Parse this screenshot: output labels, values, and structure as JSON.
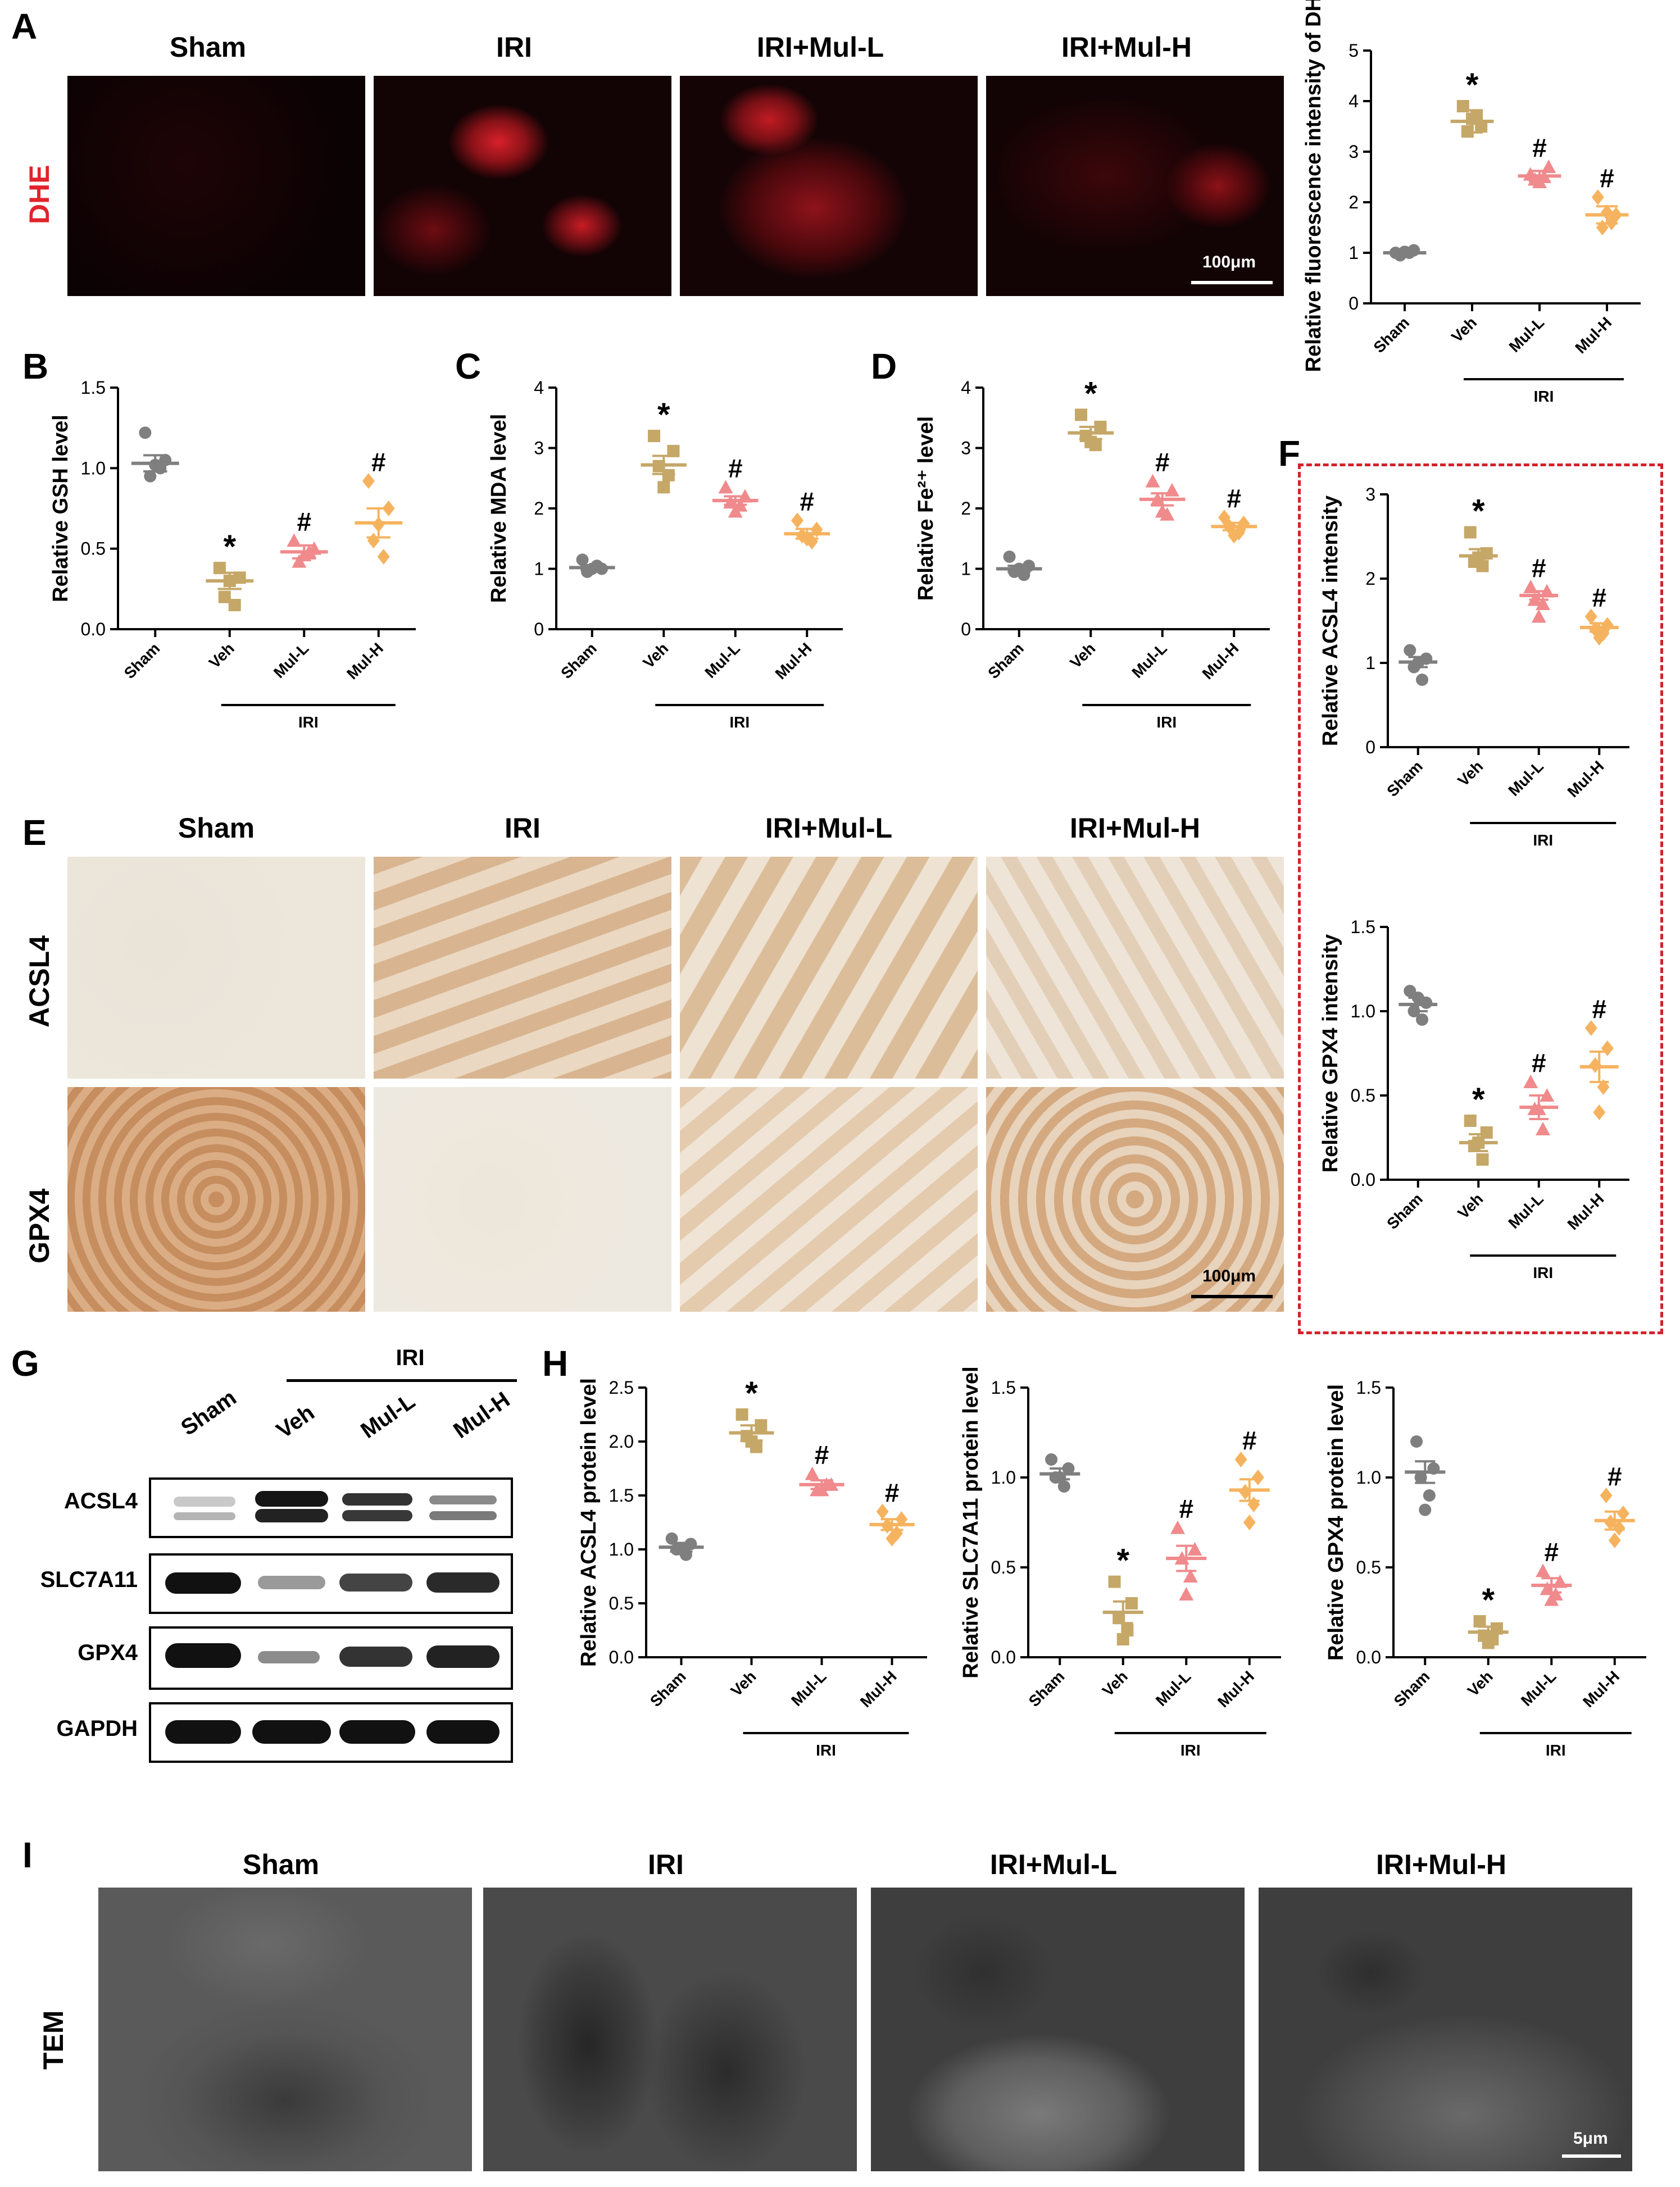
{
  "panels": {
    "A": {
      "letter": "A",
      "row_label": "DHE",
      "columns": [
        "Sham",
        "IRI",
        "IRI+Mul-L",
        "IRI+Mul-H"
      ],
      "scale": "100μm"
    },
    "B": {
      "letter": "B"
    },
    "C": {
      "letter": "C"
    },
    "D": {
      "letter": "D"
    },
    "E": {
      "letter": "E",
      "columns": [
        "Sham",
        "IRI",
        "IRI+Mul-L",
        "IRI+Mul-H"
      ],
      "rows": [
        "ACSL4",
        "GPX4"
      ],
      "scale": "100μm"
    },
    "F": {
      "letter": "F"
    },
    "G": {
      "letter": "G",
      "group": "IRI",
      "lanes": [
        "Sham",
        "Veh",
        "Mul-L",
        "Mul-H"
      ],
      "proteins": [
        "ACSL4",
        "SLC7A11",
        "GPX4",
        "GAPDH"
      ]
    },
    "H": {
      "letter": "H"
    },
    "I": {
      "letter": "I",
      "row_label": "TEM",
      "columns": [
        "Sham",
        "IRI",
        "IRI+Mul-L",
        "IRI+Mul-H"
      ],
      "scale": "5μm"
    }
  },
  "colors": {
    "sham": "#7f7f7f",
    "veh": "#c5a768",
    "mull": "#f08a8c",
    "mulh": "#f6b35f",
    "dashed_red": "#d3222a",
    "dhe_red": "#e0242a"
  },
  "chart_data": [
    {
      "id": "dhe",
      "type": "scatter",
      "ylabel": "Relative fluorescence intensity of DHE",
      "categories": [
        "Sham",
        "Veh",
        "Mul-L",
        "Mul-H"
      ],
      "group_label": "IRI",
      "ylim": [
        0,
        5
      ],
      "yticks": [
        0,
        1,
        2,
        3,
        4,
        5
      ],
      "means": [
        1.0,
        3.6,
        2.52,
        1.75
      ],
      "sem": [
        0.05,
        0.22,
        0.1,
        0.17
      ],
      "points": [
        [
          1.0,
          1.05,
          0.95,
          1.0,
          1.02
        ],
        [
          3.9,
          3.5,
          3.4,
          3.7,
          3.65
        ],
        [
          2.55,
          2.7,
          2.45,
          2.5,
          2.4
        ],
        [
          2.1,
          1.75,
          1.5,
          1.6,
          1.8
        ]
      ],
      "marks": [
        "",
        "*",
        "#",
        "#"
      ]
    },
    {
      "id": "gsh",
      "type": "scatter",
      "ylabel": "Relative GSH level",
      "categories": [
        "Sham",
        "Veh",
        "Mul-L",
        "Mul-H"
      ],
      "group_label": "IRI",
      "ylim": [
        0,
        1.5
      ],
      "yticks": [
        0.0,
        0.5,
        1.0,
        1.5
      ],
      "means": [
        1.03,
        0.3,
        0.48,
        0.66
      ],
      "sem": [
        0.05,
        0.05,
        0.04,
        0.09
      ],
      "points": [
        [
          1.22,
          1.05,
          0.95,
          1.0,
          1.02
        ],
        [
          0.38,
          0.32,
          0.2,
          0.15,
          0.3
        ],
        [
          0.55,
          0.5,
          0.42,
          0.48,
          0.46
        ],
        [
          0.92,
          0.75,
          0.55,
          0.45,
          0.65
        ]
      ],
      "marks": [
        "",
        "*",
        "#",
        "#"
      ]
    },
    {
      "id": "mda",
      "type": "scatter",
      "ylabel": "Relative MDA level",
      "categories": [
        "Sham",
        "Veh",
        "Mul-L",
        "Mul-H"
      ],
      "group_label": "IRI",
      "ylim": [
        0,
        4
      ],
      "yticks": [
        0,
        1,
        2,
        3,
        4
      ],
      "means": [
        1.02,
        2.72,
        2.13,
        1.58
      ],
      "sem": [
        0.04,
        0.15,
        0.07,
        0.08
      ],
      "points": [
        [
          1.15,
          1.0,
          0.95,
          1.05,
          1.0
        ],
        [
          3.2,
          2.95,
          2.7,
          2.55,
          2.35
        ],
        [
          2.35,
          2.2,
          2.1,
          2.05,
          1.95
        ],
        [
          1.8,
          1.65,
          1.55,
          1.45,
          1.5
        ]
      ],
      "marks": [
        "",
        "*",
        "#",
        "#"
      ]
    },
    {
      "id": "fe",
      "type": "scatter",
      "ylabel": "Relative Fe²⁺ level",
      "categories": [
        "Sham",
        "Veh",
        "Mul-L",
        "Mul-H"
      ],
      "group_label": "IRI",
      "ylim": [
        0,
        4
      ],
      "yticks": [
        0,
        1,
        2,
        3,
        4
      ],
      "means": [
        1.0,
        3.25,
        2.15,
        1.7
      ],
      "sem": [
        0.05,
        0.1,
        0.1,
        0.06
      ],
      "points": [
        [
          1.2,
          1.05,
          0.95,
          0.9,
          1.0
        ],
        [
          3.55,
          3.35,
          3.2,
          3.05,
          3.1
        ],
        [
          2.45,
          2.3,
          2.15,
          1.9,
          1.95
        ],
        [
          1.85,
          1.75,
          1.7,
          1.6,
          1.55
        ]
      ],
      "marks": [
        "",
        "*",
        "#",
        "#"
      ]
    },
    {
      "id": "acsl4_int",
      "type": "scatter",
      "ylabel": "Relative ACSL4 intensity",
      "categories": [
        "Sham",
        "Veh",
        "Mul-L",
        "Mul-H"
      ],
      "group_label": "IRI",
      "ylim": [
        0,
        3
      ],
      "yticks": [
        0,
        1,
        2,
        3
      ],
      "means": [
        1.01,
        2.27,
        1.8,
        1.42
      ],
      "sem": [
        0.06,
        0.08,
        0.05,
        0.05
      ],
      "points": [
        [
          1.15,
          1.05,
          0.95,
          0.8,
          1.0
        ],
        [
          2.55,
          2.3,
          2.2,
          2.15,
          2.25
        ],
        [
          1.9,
          1.85,
          1.75,
          1.7,
          1.55
        ],
        [
          1.55,
          1.45,
          1.4,
          1.35,
          1.3
        ]
      ],
      "marks": [
        "",
        "*",
        "#",
        "#"
      ]
    },
    {
      "id": "gpx4_int",
      "type": "scatter",
      "ylabel": "Relative GPX4 intensity",
      "categories": [
        "Sham",
        "Veh",
        "Mul-L",
        "Mul-H"
      ],
      "group_label": "IRI",
      "ylim": [
        0,
        1.5
      ],
      "yticks": [
        0.0,
        0.5,
        1.0,
        1.5
      ],
      "means": [
        1.04,
        0.22,
        0.43,
        0.67
      ],
      "sem": [
        0.04,
        0.05,
        0.07,
        0.09
      ],
      "points": [
        [
          1.12,
          1.05,
          1.0,
          0.95,
          1.08
        ],
        [
          0.35,
          0.28,
          0.2,
          0.12,
          0.22
        ],
        [
          0.58,
          0.5,
          0.42,
          0.3,
          0.42
        ],
        [
          0.9,
          0.78,
          0.68,
          0.55,
          0.4
        ]
      ],
      "marks": [
        "",
        "*",
        "#",
        "#"
      ]
    },
    {
      "id": "acsl4_wb",
      "type": "scatter",
      "ylabel": "Relative ACSL4 protein level",
      "categories": [
        "Sham",
        "Veh",
        "Mul-L",
        "Mul-H"
      ],
      "group_label": "IRI",
      "ylim": [
        0,
        2.5
      ],
      "yticks": [
        0.0,
        0.5,
        1.0,
        1.5,
        2.0,
        2.5
      ],
      "means": [
        1.02,
        2.08,
        1.6,
        1.23
      ],
      "sem": [
        0.04,
        0.07,
        0.04,
        0.05
      ],
      "points": [
        [
          1.1,
          1.05,
          1.0,
          0.95,
          1.0
        ],
        [
          2.25,
          2.15,
          2.05,
          1.95,
          2.0
        ],
        [
          1.7,
          1.6,
          1.55,
          1.6,
          1.55
        ],
        [
          1.35,
          1.28,
          1.22,
          1.15,
          1.1
        ]
      ],
      "marks": [
        "",
        "*",
        "#",
        "#"
      ]
    },
    {
      "id": "slc7a11_wb",
      "type": "scatter",
      "ylabel": "Relative SLC7A11 protein level",
      "categories": [
        "Sham",
        "Veh",
        "Mul-L",
        "Mul-H"
      ],
      "group_label": "IRI",
      "ylim": [
        0,
        1.5
      ],
      "yticks": [
        0.0,
        0.5,
        1.0,
        1.5
      ],
      "means": [
        1.02,
        0.25,
        0.55,
        0.93
      ],
      "sem": [
        0.03,
        0.06,
        0.07,
        0.06
      ],
      "points": [
        [
          1.1,
          1.05,
          1.0,
          0.95,
          1.0
        ],
        [
          0.42,
          0.3,
          0.22,
          0.15,
          0.1
        ],
        [
          0.72,
          0.6,
          0.55,
          0.45,
          0.35
        ],
        [
          1.1,
          1.0,
          0.92,
          0.85,
          0.75
        ]
      ],
      "marks": [
        "",
        "*",
        "#",
        "#"
      ]
    },
    {
      "id": "gpx4_wb",
      "type": "scatter",
      "ylabel": "Relative GPX4 protein level",
      "categories": [
        "Sham",
        "Veh",
        "Mul-L",
        "Mul-H"
      ],
      "group_label": "IRI",
      "ylim": [
        0,
        1.5
      ],
      "yticks": [
        0.0,
        0.5,
        1.0,
        1.5
      ],
      "means": [
        1.03,
        0.14,
        0.4,
        0.76
      ],
      "sem": [
        0.06,
        0.03,
        0.04,
        0.05
      ],
      "points": [
        [
          1.2,
          1.05,
          1.0,
          0.9,
          0.82
        ],
        [
          0.2,
          0.16,
          0.12,
          0.1,
          0.08
        ],
        [
          0.48,
          0.42,
          0.38,
          0.35,
          0.32
        ],
        [
          0.9,
          0.8,
          0.75,
          0.72,
          0.65
        ]
      ],
      "marks": [
        "",
        "*",
        "#",
        "#"
      ]
    }
  ]
}
